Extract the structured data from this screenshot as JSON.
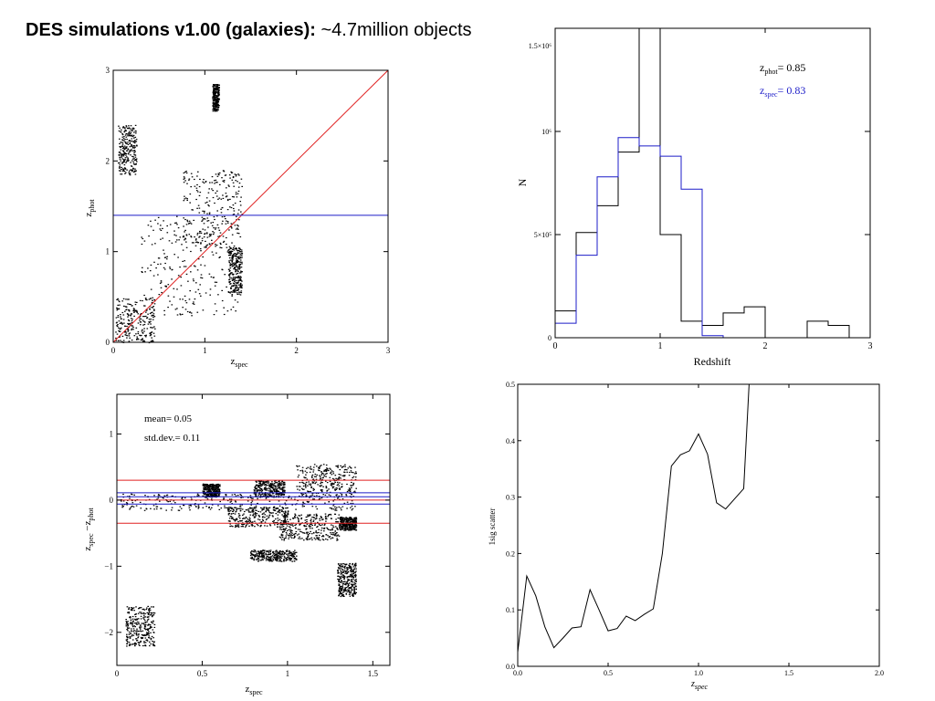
{
  "page": {
    "title_bold": "DES simulations v1.00 (galaxies):",
    "title_rest": " ~4.7million objects"
  },
  "colors": {
    "black": "#000000",
    "red": "#e02020",
    "blue": "#1c1cc8"
  },
  "chart_data": [
    {
      "id": "zphot_vs_zspec",
      "type": "scatter",
      "xlabel_main": "z",
      "xlabel_sub": "spec",
      "ylabel_main": "z",
      "ylabel_sub": "phot",
      "xlim": [
        0,
        3
      ],
      "ylim": [
        0,
        3
      ],
      "xticks": [
        "0",
        "1",
        "2",
        "3"
      ],
      "yticks": [
        "0",
        "1",
        "2",
        "3"
      ],
      "reference_lines": [
        {
          "kind": "identity",
          "color": "red"
        },
        {
          "kind": "horizontal",
          "y": 1.4,
          "color": "blue"
        }
      ],
      "regions": [
        {
          "x": [
            0.02,
            0.45
          ],
          "y": [
            0.0,
            0.5
          ]
        },
        {
          "x": [
            0.3,
            1.4
          ],
          "y": [
            0.3,
            1.4
          ]
        },
        {
          "x": [
            0.75,
            1.4
          ],
          "y": [
            1.05,
            1.9
          ]
        },
        {
          "x": [
            1.08,
            1.15
          ],
          "y": [
            2.55,
            2.85
          ]
        },
        {
          "x": [
            0.05,
            0.25
          ],
          "y": [
            1.85,
            2.4
          ]
        },
        {
          "x": [
            1.25,
            1.4
          ],
          "y": [
            0.55,
            1.05
          ]
        }
      ]
    },
    {
      "id": "redshift_histogram",
      "type": "histogram",
      "xlabel": "Redshift",
      "ylabel": "N",
      "xlim": [
        0,
        3
      ],
      "ylim": [
        0,
        1550000
      ],
      "xticks": [
        "0",
        "1",
        "2",
        "3"
      ],
      "yticks": [
        "0",
        "5×10⁵",
        "10⁶",
        "1.5×10⁶"
      ],
      "bins": [
        0,
        0.2,
        0.4,
        0.6,
        0.8,
        1.0,
        1.2,
        1.4,
        1.6,
        1.8,
        2.0,
        2.2,
        2.4,
        2.6,
        2.8,
        3.0
      ],
      "series": [
        {
          "name": "z_phot",
          "color": "black",
          "values": [
            130000,
            510000,
            640000,
            900000,
            1550000,
            500000,
            80000,
            60000,
            120000,
            150000,
            0,
            0,
            80000,
            60000,
            0
          ]
        },
        {
          "name": "z_spec",
          "color": "blue",
          "values": [
            70000,
            400000,
            780000,
            970000,
            930000,
            880000,
            720000,
            10000,
            0,
            0,
            0,
            0,
            0,
            0,
            0
          ]
        }
      ],
      "legend": [
        {
          "main": "z",
          "sub": "phot",
          "text": "=  0.85",
          "color": "black"
        },
        {
          "main": "z",
          "sub": "spec",
          "text": "=  0.83",
          "color": "blue"
        }
      ],
      "legend_position": "top-right"
    },
    {
      "id": "residuals",
      "type": "scatter",
      "xlabel_main": "z",
      "xlabel_sub": "spec",
      "ylabel_main": "z",
      "ylabel_sub1": "spec",
      "ylabel_mid": " −z",
      "ylabel_sub2": "phot",
      "xlim": [
        0,
        1.6
      ],
      "ylim": [
        -2.5,
        1.6
      ],
      "xticks": [
        "0",
        "0.5",
        "1",
        "1.5"
      ],
      "yticks": [
        "−2",
        "−1",
        "0",
        "1"
      ],
      "annotations": [
        "mean= 0.05",
        "std.dev.= 0.11"
      ],
      "reference_lines": [
        {
          "y": 0.3,
          "color": "red"
        },
        {
          "y": -0.35,
          "color": "red"
        },
        {
          "y": 0.0,
          "color": "red"
        },
        {
          "y": 0.05,
          "color": "blue"
        },
        {
          "y": 0.11,
          "color": "blue"
        },
        {
          "y": -0.06,
          "color": "blue"
        }
      ],
      "regions": [
        {
          "x": [
            0.02,
            1.4
          ],
          "y": [
            -0.15,
            0.1
          ]
        },
        {
          "x": [
            0.5,
            0.6
          ],
          "y": [
            0.05,
            0.25
          ]
        },
        {
          "x": [
            0.8,
            0.98
          ],
          "y": [
            0.05,
            0.3
          ]
        },
        {
          "x": [
            1.05,
            1.4
          ],
          "y": [
            0.05,
            0.55
          ]
        },
        {
          "x": [
            0.65,
            1.0
          ],
          "y": [
            -0.4,
            -0.1
          ]
        },
        {
          "x": [
            0.95,
            1.3
          ],
          "y": [
            -0.6,
            -0.2
          ]
        },
        {
          "x": [
            0.78,
            1.05
          ],
          "y": [
            -0.92,
            -0.75
          ]
        },
        {
          "x": [
            1.29,
            1.4
          ],
          "y": [
            -1.45,
            -0.95
          ]
        },
        {
          "x": [
            1.3,
            1.4
          ],
          "y": [
            -0.45,
            -0.25
          ]
        },
        {
          "x": [
            0.05,
            0.22
          ],
          "y": [
            -2.2,
            -1.6
          ]
        }
      ]
    },
    {
      "id": "sigma_scatter",
      "type": "line",
      "xlabel_main": "z",
      "xlabel_sub": "spec",
      "ylabel": "1sig scatter",
      "xlim": [
        0,
        2.0
      ],
      "ylim": [
        0,
        0.5
      ],
      "xticks": [
        "0.0",
        "0.5",
        "1.0",
        "1.5",
        "2.0"
      ],
      "yticks": [
        "0.0",
        "0.1",
        "0.2",
        "0.3",
        "0.4",
        "0.5"
      ],
      "x": [
        0.0,
        0.05,
        0.1,
        0.15,
        0.2,
        0.25,
        0.3,
        0.35,
        0.4,
        0.45,
        0.5,
        0.55,
        0.6,
        0.65,
        0.7,
        0.75,
        0.8,
        0.85,
        0.9,
        0.95,
        1.0,
        1.05,
        1.1,
        1.15,
        1.25,
        1.28
      ],
      "y": [
        0.025,
        0.16,
        0.125,
        0.07,
        0.033,
        0.05,
        0.068,
        0.07,
        0.136,
        0.1,
        0.063,
        0.067,
        0.089,
        0.081,
        0.092,
        0.102,
        0.2,
        0.355,
        0.375,
        0.382,
        0.412,
        0.376,
        0.29,
        0.279,
        0.315,
        0.5
      ]
    }
  ]
}
